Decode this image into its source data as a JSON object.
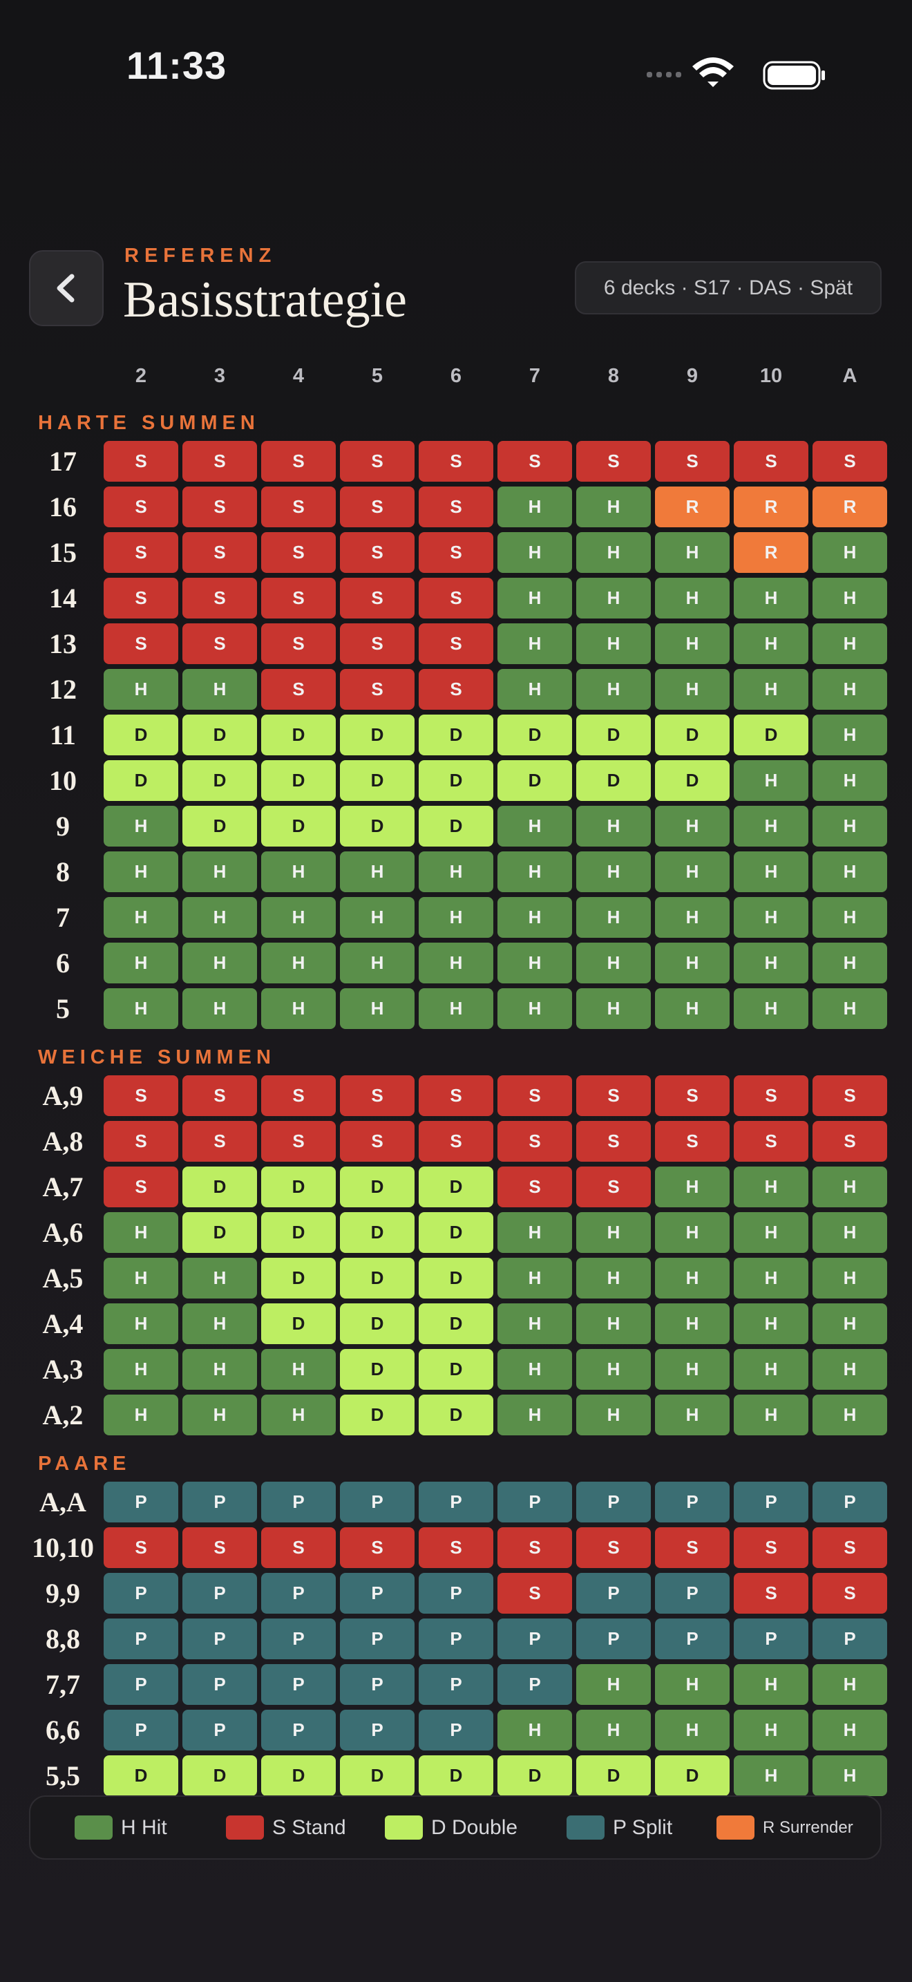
{
  "status_bar": {
    "time": "11:33"
  },
  "header": {
    "eyebrow": "REFERENZ",
    "title": "Basisstrategie",
    "rules_badge": "6 decks · S17 · DAS · Spät"
  },
  "dealer_cards": [
    "2",
    "3",
    "4",
    "5",
    "6",
    "7",
    "8",
    "9",
    "10",
    "A"
  ],
  "sections": [
    {
      "title": "HARTE SUMMEN",
      "rows": [
        {
          "hand": "17",
          "actions": [
            "S",
            "S",
            "S",
            "S",
            "S",
            "S",
            "S",
            "S",
            "S",
            "S"
          ]
        },
        {
          "hand": "16",
          "actions": [
            "S",
            "S",
            "S",
            "S",
            "S",
            "H",
            "H",
            "R",
            "R",
            "R"
          ]
        },
        {
          "hand": "15",
          "actions": [
            "S",
            "S",
            "S",
            "S",
            "S",
            "H",
            "H",
            "H",
            "R",
            "H"
          ]
        },
        {
          "hand": "14",
          "actions": [
            "S",
            "S",
            "S",
            "S",
            "S",
            "H",
            "H",
            "H",
            "H",
            "H"
          ]
        },
        {
          "hand": "13",
          "actions": [
            "S",
            "S",
            "S",
            "S",
            "S",
            "H",
            "H",
            "H",
            "H",
            "H"
          ]
        },
        {
          "hand": "12",
          "actions": [
            "H",
            "H",
            "S",
            "S",
            "S",
            "H",
            "H",
            "H",
            "H",
            "H"
          ]
        },
        {
          "hand": "11",
          "actions": [
            "D",
            "D",
            "D",
            "D",
            "D",
            "D",
            "D",
            "D",
            "D",
            "H"
          ]
        },
        {
          "hand": "10",
          "actions": [
            "D",
            "D",
            "D",
            "D",
            "D",
            "D",
            "D",
            "D",
            "H",
            "H"
          ]
        },
        {
          "hand": "9",
          "actions": [
            "H",
            "D",
            "D",
            "D",
            "D",
            "H",
            "H",
            "H",
            "H",
            "H"
          ]
        },
        {
          "hand": "8",
          "actions": [
            "H",
            "H",
            "H",
            "H",
            "H",
            "H",
            "H",
            "H",
            "H",
            "H"
          ]
        },
        {
          "hand": "7",
          "actions": [
            "H",
            "H",
            "H",
            "H",
            "H",
            "H",
            "H",
            "H",
            "H",
            "H"
          ]
        },
        {
          "hand": "6",
          "actions": [
            "H",
            "H",
            "H",
            "H",
            "H",
            "H",
            "H",
            "H",
            "H",
            "H"
          ]
        },
        {
          "hand": "5",
          "actions": [
            "H",
            "H",
            "H",
            "H",
            "H",
            "H",
            "H",
            "H",
            "H",
            "H"
          ]
        }
      ]
    },
    {
      "title": "WEICHE SUMMEN",
      "rows": [
        {
          "hand": "A,9",
          "actions": [
            "S",
            "S",
            "S",
            "S",
            "S",
            "S",
            "S",
            "S",
            "S",
            "S"
          ]
        },
        {
          "hand": "A,8",
          "actions": [
            "S",
            "S",
            "S",
            "S",
            "S",
            "S",
            "S",
            "S",
            "S",
            "S"
          ]
        },
        {
          "hand": "A,7",
          "actions": [
            "S",
            "D",
            "D",
            "D",
            "D",
            "S",
            "S",
            "H",
            "H",
            "H"
          ]
        },
        {
          "hand": "A,6",
          "actions": [
            "H",
            "D",
            "D",
            "D",
            "D",
            "H",
            "H",
            "H",
            "H",
            "H"
          ]
        },
        {
          "hand": "A,5",
          "actions": [
            "H",
            "H",
            "D",
            "D",
            "D",
            "H",
            "H",
            "H",
            "H",
            "H"
          ]
        },
        {
          "hand": "A,4",
          "actions": [
            "H",
            "H",
            "D",
            "D",
            "D",
            "H",
            "H",
            "H",
            "H",
            "H"
          ]
        },
        {
          "hand": "A,3",
          "actions": [
            "H",
            "H",
            "H",
            "D",
            "D",
            "H",
            "H",
            "H",
            "H",
            "H"
          ]
        },
        {
          "hand": "A,2",
          "actions": [
            "H",
            "H",
            "H",
            "D",
            "D",
            "H",
            "H",
            "H",
            "H",
            "H"
          ]
        }
      ]
    },
    {
      "title": "PAARE",
      "rows": [
        {
          "hand": "A,A",
          "actions": [
            "P",
            "P",
            "P",
            "P",
            "P",
            "P",
            "P",
            "P",
            "P",
            "P"
          ]
        },
        {
          "hand": "10,10",
          "actions": [
            "S",
            "S",
            "S",
            "S",
            "S",
            "S",
            "S",
            "S",
            "S",
            "S"
          ]
        },
        {
          "hand": "9,9",
          "actions": [
            "P",
            "P",
            "P",
            "P",
            "P",
            "S",
            "P",
            "P",
            "S",
            "S"
          ]
        },
        {
          "hand": "8,8",
          "actions": [
            "P",
            "P",
            "P",
            "P",
            "P",
            "P",
            "P",
            "P",
            "P",
            "P"
          ]
        },
        {
          "hand": "7,7",
          "actions": [
            "P",
            "P",
            "P",
            "P",
            "P",
            "P",
            "H",
            "H",
            "H",
            "H"
          ]
        },
        {
          "hand": "6,6",
          "actions": [
            "P",
            "P",
            "P",
            "P",
            "P",
            "H",
            "H",
            "H",
            "H",
            "H"
          ]
        },
        {
          "hand": "5,5",
          "actions": [
            "D",
            "D",
            "D",
            "D",
            "D",
            "D",
            "D",
            "D",
            "H",
            "H"
          ]
        }
      ]
    }
  ],
  "legend": [
    {
      "label": "H Hit",
      "color": "#5a8f4a",
      "text_color": "#f2f2f2"
    },
    {
      "label": "S Stand",
      "color": "#c8352f",
      "text_color": "#f2f2f2"
    },
    {
      "label": "D Double",
      "color": "#bdee62",
      "text_color": "#1a1a1a"
    },
    {
      "label": "P Split",
      "color": "#3b6e73",
      "text_color": "#f2f2f2"
    },
    {
      "label": "R Surrender",
      "color": "#f07a3a",
      "text_color": "#f2f2f2"
    }
  ]
}
